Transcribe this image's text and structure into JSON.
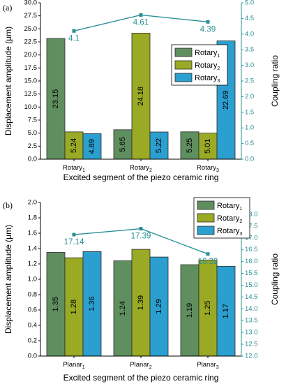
{
  "colors": {
    "series": [
      "#5f8f5f",
      "#9aaa24",
      "#2b9fcf"
    ],
    "coupling": "#2a8f94",
    "axis": "#000000"
  },
  "chart_data": [
    {
      "type": "bar",
      "panel_label": "(a)",
      "categories": [
        {
          "base": "Rotary",
          "sub": "1"
        },
        {
          "base": "Rotary",
          "sub": "2"
        },
        {
          "base": "Rotary",
          "sub": "3"
        }
      ],
      "series": [
        {
          "name": {
            "base": "Rotary",
            "sub": "1"
          },
          "values": [
            23.15,
            5.65,
            5.25
          ]
        },
        {
          "name": {
            "base": "Rotary",
            "sub": "2"
          },
          "values": [
            5.24,
            24.18,
            5.01
          ]
        },
        {
          "name": {
            "base": "Rotary",
            "sub": "3"
          },
          "values": [
            4.89,
            5.22,
            22.69
          ]
        }
      ],
      "coupling": {
        "values": [
          4.1,
          4.61,
          4.39
        ],
        "labels": [
          "4.1",
          "4.61",
          "4.39"
        ]
      },
      "xlabel": "Excited segment of the piezo ceramic ring",
      "ylabel": "Displacement amplitude (μm)",
      "y2label": "Coupling ratio",
      "ylim": [
        0,
        30
      ],
      "yticks": [
        "0.0",
        "2.5",
        "5.0",
        "7.5",
        "10.0",
        "12.5",
        "15.0",
        "17.5",
        "20.0",
        "22.5",
        "25.0",
        "27.5",
        "30.0"
      ],
      "y2lim": [
        0,
        5
      ],
      "y2ticks": [
        "0.0",
        "0.5",
        "1.0",
        "1.5",
        "2.0",
        "2.5",
        "3.0",
        "3.5",
        "4.0",
        "4.5",
        "5.0"
      ],
      "value_labels": [
        [
          "23.15",
          "5.65",
          "5.25"
        ],
        [
          "5.24",
          "24.18",
          "5.01"
        ],
        [
          "4.89",
          "5.22",
          "22.69"
        ]
      ],
      "legend_position": "inside-right"
    },
    {
      "type": "bar",
      "panel_label": "(b)",
      "categories": [
        {
          "base": "Planar",
          "sub": "1"
        },
        {
          "base": "Planar",
          "sub": "2"
        },
        {
          "base": "Planar",
          "sub": "3"
        }
      ],
      "series": [
        {
          "name": {
            "base": "Rotary",
            "sub": "1"
          },
          "values": [
            1.35,
            1.24,
            1.19
          ]
        },
        {
          "name": {
            "base": "Rotary",
            "sub": "2"
          },
          "values": [
            1.28,
            1.39,
            1.25
          ]
        },
        {
          "name": {
            "base": "Rotary",
            "sub": "3"
          },
          "values": [
            1.36,
            1.29,
            1.17
          ]
        }
      ],
      "coupling": {
        "values": [
          17.14,
          17.39,
          16.32
        ],
        "labels": [
          "17.14",
          "17.39",
          "16.32"
        ]
      },
      "xlabel": "Excited segment of the piezo ceramic ring",
      "ylabel": "Displacement amplitude (μm)",
      "y2label": "Coupling ratio",
      "ylim": [
        0,
        2
      ],
      "yticks": [
        "0.0",
        "0.2",
        "0.4",
        "0.6",
        "0.8",
        "1.0",
        "1.2",
        "1.4",
        "1.6",
        "1.8",
        "2.0"
      ],
      "y2lim": [
        12,
        18.5
      ],
      "y2ticks": [
        "12.0",
        "12.5",
        "13.0",
        "13.5",
        "14.0",
        "14.5",
        "15.0",
        "15.5",
        "16.0",
        "16.5",
        "17.0",
        "17.5",
        "18.0"
      ],
      "value_labels": [
        [
          "1.35",
          "1.24",
          "1.19"
        ],
        [
          "1.28",
          "1.39",
          "1.25"
        ],
        [
          "1.36",
          "1.29",
          "1.17"
        ]
      ],
      "legend_position": "top-right"
    }
  ]
}
